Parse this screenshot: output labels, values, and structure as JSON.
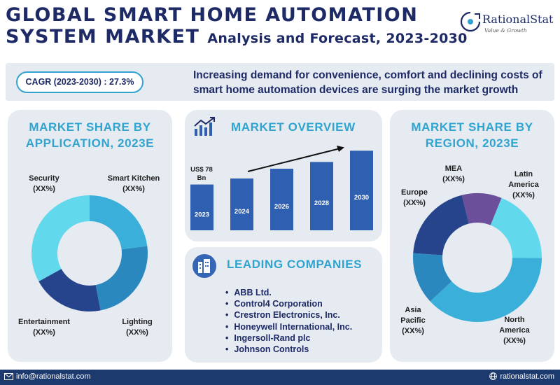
{
  "header": {
    "title_line1": "GLOBAL SMART HOME AUTOMATION",
    "title_line2": "SYSTEM MARKET",
    "title_suffix": "Analysis and Forecast, 2023-2030"
  },
  "logo": {
    "name": "RationalStat",
    "tagline": "Value & Growth"
  },
  "cagr": {
    "label": "CAGR (2023-2030) : 27.3%",
    "description": "Increasing demand for convenience, comfort and declining costs of smart home automation devices are surging the market growth"
  },
  "application": {
    "title": "MARKET SHARE BY APPLICATION, 2023E",
    "labels": [
      {
        "name": "Security",
        "value": "(XX%)"
      },
      {
        "name": "Smart Kitchen",
        "value": "(XX%)"
      },
      {
        "name": "Entertainment",
        "value": "(XX%)"
      },
      {
        "name": "Lighting",
        "value": "(XX%)"
      }
    ]
  },
  "overview": {
    "title": "MARKET OVERVIEW",
    "value_label": "US$ 78 Bn"
  },
  "companies": {
    "title": "LEADING COMPANIES",
    "items": [
      "ABB Ltd.",
      "Control4 Corporation",
      "Crestron Electronics, Inc.",
      "Honeywell International, Inc.",
      "Ingersoll-Rand plc",
      "Johnson Controls"
    ]
  },
  "region": {
    "title": "MARKET SHARE BY REGION, 2023E",
    "labels": [
      {
        "name": "MEA",
        "value": "(XX%)"
      },
      {
        "name": "Latin America",
        "value": "(XX%)"
      },
      {
        "name": "Europe",
        "value": "(XX%)"
      },
      {
        "name": "Asia Pacific",
        "value": "(XX%)"
      },
      {
        "name": "North America",
        "value": "(XX%)"
      }
    ]
  },
  "footer": {
    "email": "info@rationalstat.com",
    "website": "rationalstat.com"
  },
  "colors": {
    "navy": "#1d2a66",
    "accent": "#30a4cf",
    "panel": "#e6ebf1",
    "bar": "#2f5fb0",
    "footer": "#1d3a6e"
  },
  "chart_data": [
    {
      "type": "pie",
      "title": "MARKET SHARE BY APPLICATION, 2023E",
      "categories": [
        "Smart Kitchen",
        "Lighting",
        "Entertainment",
        "Security"
      ],
      "values": [
        23,
        24,
        20,
        33
      ],
      "colors": [
        "#3aafd9",
        "#2b88be",
        "#26448c",
        "#62d8ec"
      ],
      "donut": true
    },
    {
      "type": "bar",
      "title": "MARKET OVERVIEW",
      "categories": [
        "2023",
        "2024",
        "2026",
        "2028",
        "2030"
      ],
      "values": [
        61,
        69,
        82,
        91,
        106
      ],
      "color": "#2f5fb0",
      "trend_arrow": true
    },
    {
      "type": "pie",
      "title": "MARKET SHARE BY REGION, 2023E",
      "categories": [
        "Latin America",
        "North America",
        "Asia Pacific",
        "Europe",
        "MEA"
      ],
      "values": [
        19,
        38,
        13,
        20,
        10
      ],
      "colors": [
        "#62d8ec",
        "#3aafd9",
        "#2b88be",
        "#26448c",
        "#6b4f9a"
      ],
      "donut": true
    }
  ]
}
